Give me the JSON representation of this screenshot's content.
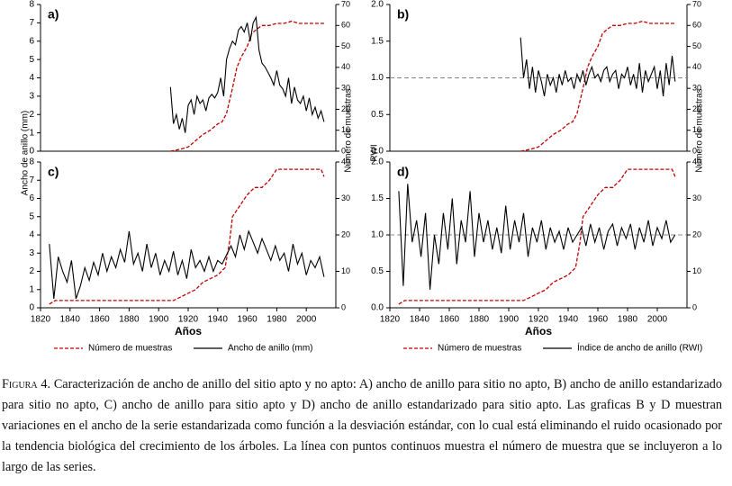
{
  "chart_data": [
    {
      "type": "line",
      "label": "a)",
      "ylabel": "Ancho de anillo (mm)",
      "y2label": "Número de muestras",
      "xlim": [
        1820,
        2020
      ],
      "ylim": [
        0,
        8
      ],
      "yticks": [
        0,
        1,
        2,
        3,
        4,
        5,
        6,
        7,
        8
      ],
      "y2lim": [
        0,
        70
      ],
      "y2ticks": [
        0,
        10,
        20,
        30,
        40,
        50,
        60,
        70
      ],
      "series": [
        {
          "color": "#c00000",
          "dash": true,
          "axis": "y2",
          "x": [
            1908,
            1915,
            1920,
            1925,
            1930,
            1935,
            1940,
            1943,
            1946,
            1950,
            1953,
            1956,
            1960,
            1963,
            1966,
            1970,
            1975,
            1980,
            1985,
            1990,
            1995,
            2000,
            2005,
            2012
          ],
          "values": [
            0,
            1,
            2,
            5,
            8,
            10,
            13,
            14,
            18,
            30,
            40,
            45,
            50,
            56,
            58,
            60,
            60,
            61,
            61,
            62,
            61,
            61,
            61,
            61
          ]
        },
        {
          "color": "#000000",
          "x": [
            1908,
            1910,
            1912,
            1914,
            1916,
            1918,
            1920,
            1922,
            1924,
            1926,
            1928,
            1930,
            1932,
            1934,
            1936,
            1938,
            1940,
            1942,
            1944,
            1946,
            1948,
            1950,
            1952,
            1954,
            1956,
            1958,
            1960,
            1962,
            1964,
            1966,
            1968,
            1970,
            1972,
            1974,
            1976,
            1978,
            1980,
            1982,
            1984,
            1986,
            1988,
            1990,
            1992,
            1994,
            1996,
            1998,
            2000,
            2002,
            2004,
            2006,
            2008,
            2010,
            2012
          ],
          "values": [
            3.5,
            1.5,
            2.0,
            1.2,
            1.8,
            1.0,
            2.5,
            2.8,
            2.0,
            3.0,
            2.6,
            2.8,
            2.2,
            2.9,
            3.1,
            2.9,
            3.2,
            4.0,
            3.0,
            5.0,
            5.6,
            6.0,
            5.8,
            6.6,
            6.8,
            6.5,
            7.0,
            6.0,
            7.0,
            7.3,
            5.5,
            4.8,
            4.6,
            4.3,
            4.0,
            3.6,
            4.4,
            3.6,
            3.4,
            3.0,
            4.0,
            2.6,
            3.5,
            2.8,
            2.6,
            3.0,
            2.2,
            2.9,
            2.0,
            2.4,
            1.8,
            2.2,
            1.6
          ]
        }
      ]
    },
    {
      "type": "line",
      "label": "b)",
      "ylabel": "RWI",
      "y2label": "Número de muestras",
      "refline": 1,
      "xlim": [
        1820,
        2020
      ],
      "ylim": [
        0,
        2
      ],
      "yticks": [
        {
          "value": 0,
          "label": "0.0"
        },
        {
          "value": 0.5,
          "label": "0.5"
        },
        {
          "value": 1,
          "label": "1.0"
        },
        {
          "value": 1.5,
          "label": "1.5"
        },
        {
          "value": 2,
          "label": "2.0"
        }
      ],
      "y2lim": [
        0,
        70
      ],
      "y2ticks": [
        0,
        10,
        20,
        30,
        40,
        50,
        60,
        70
      ],
      "series": [
        {
          "color": "#c00000",
          "dash": true,
          "axis": "y2",
          "x": [
            1908,
            1915,
            1920,
            1925,
            1930,
            1935,
            1940,
            1943,
            1946,
            1950,
            1953,
            1956,
            1960,
            1963,
            1966,
            1970,
            1975,
            1980,
            1985,
            1990,
            1995,
            2000,
            2005,
            2012
          ],
          "values": [
            0,
            1,
            2,
            5,
            8,
            10,
            13,
            14,
            18,
            30,
            40,
            45,
            50,
            56,
            58,
            60,
            60,
            61,
            61,
            62,
            61,
            61,
            61,
            61
          ]
        },
        {
          "color": "#000000",
          "x": [
            1908,
            1910,
            1912,
            1914,
            1916,
            1918,
            1920,
            1922,
            1924,
            1926,
            1928,
            1930,
            1932,
            1934,
            1936,
            1938,
            1940,
            1942,
            1944,
            1946,
            1948,
            1950,
            1952,
            1954,
            1956,
            1958,
            1960,
            1962,
            1964,
            1966,
            1968,
            1970,
            1972,
            1974,
            1976,
            1978,
            1980,
            1982,
            1984,
            1986,
            1988,
            1990,
            1992,
            1994,
            1996,
            1998,
            2000,
            2002,
            2004,
            2006,
            2008,
            2010,
            2012
          ],
          "values": [
            1.55,
            1.0,
            1.25,
            0.85,
            1.15,
            0.8,
            1.1,
            0.95,
            0.75,
            1.05,
            0.9,
            1.0,
            0.8,
            1.05,
            0.9,
            1.1,
            0.95,
            1.0,
            0.85,
            1.05,
            0.95,
            1.1,
            0.9,
            1.05,
            1.15,
            1.0,
            1.05,
            0.95,
            1.1,
            1.15,
            0.95,
            1.05,
            1.1,
            0.85,
            1.05,
            1.0,
            1.15,
            0.9,
            1.05,
            0.85,
            1.2,
            0.8,
            1.1,
            0.95,
            1.05,
            1.15,
            0.85,
            1.1,
            0.75,
            1.2,
            0.9,
            1.3,
            0.95
          ]
        }
      ]
    },
    {
      "type": "line",
      "label": "c)",
      "xlabel": "Años",
      "xlim": [
        1820,
        2020
      ],
      "xticks": [
        1820,
        1840,
        1860,
        1880,
        1900,
        1920,
        1940,
        1960,
        1980,
        2000
      ],
      "ylim": [
        0,
        8
      ],
      "yticks": [
        0,
        1,
        2,
        3,
        4,
        5,
        6,
        7,
        8
      ],
      "y2lim": [
        0,
        40
      ],
      "y2ticks": [
        0,
        10,
        20,
        30,
        40
      ],
      "series": [
        {
          "name": "Número de muestras",
          "color": "#c00000",
          "dash": true,
          "axis": "y2",
          "x": [
            1826,
            1830,
            1900,
            1910,
            1915,
            1920,
            1925,
            1930,
            1935,
            1940,
            1945,
            1948,
            1950,
            1955,
            1960,
            1965,
            1970,
            1975,
            1980,
            1990,
            2005,
            2010,
            2012
          ],
          "values": [
            1,
            2,
            2,
            2,
            3,
            4,
            5,
            7,
            8,
            9,
            11,
            18,
            25,
            28,
            31,
            33,
            33,
            35,
            38,
            38,
            38,
            38,
            36
          ]
        },
        {
          "name": "Ancho de anillo (mm)",
          "color": "#000000",
          "x": [
            1826,
            1829,
            1832,
            1835,
            1838,
            1841,
            1844,
            1847,
            1850,
            1853,
            1856,
            1859,
            1862,
            1865,
            1868,
            1871,
            1874,
            1877,
            1880,
            1883,
            1886,
            1889,
            1892,
            1895,
            1898,
            1901,
            1904,
            1907,
            1910,
            1913,
            1916,
            1919,
            1922,
            1925,
            1928,
            1931,
            1934,
            1937,
            1940,
            1943,
            1946,
            1949,
            1952,
            1955,
            1958,
            1961,
            1964,
            1967,
            1970,
            1973,
            1976,
            1979,
            1982,
            1985,
            1988,
            1991,
            1994,
            1997,
            2000,
            2003,
            2006,
            2009,
            2012
          ],
          "values": [
            3.5,
            0.5,
            2.8,
            2.0,
            1.4,
            2.6,
            0.5,
            1.2,
            2.2,
            1.5,
            2.5,
            1.8,
            3.0,
            2.0,
            2.8,
            2.2,
            3.2,
            2.5,
            4.2,
            2.4,
            3.0,
            2.0,
            3.5,
            2.2,
            3.0,
            1.8,
            2.6,
            2.0,
            3.1,
            1.8,
            2.6,
            1.6,
            3.2,
            2.2,
            2.6,
            2.0,
            2.8,
            2.0,
            2.6,
            2.4,
            2.9,
            3.4,
            2.8,
            4.0,
            3.2,
            4.2,
            3.6,
            3.0,
            3.8,
            3.2,
            2.6,
            3.4,
            2.6,
            3.0,
            2.0,
            3.5,
            2.4,
            3.0,
            1.8,
            2.6,
            2.2,
            2.8,
            1.7
          ]
        }
      ]
    },
    {
      "type": "line",
      "label": "d)",
      "xlabel": "Años",
      "refline": 1,
      "xlim": [
        1820,
        2020
      ],
      "xticks": [
        1820,
        1840,
        1860,
        1880,
        1900,
        1920,
        1940,
        1960,
        1980,
        2000
      ],
      "ylim": [
        0,
        2
      ],
      "yticks": [
        {
          "value": 0,
          "label": "0.0"
        },
        {
          "value": 0.5,
          "label": "0.5"
        },
        {
          "value": 1,
          "label": "1.0"
        },
        {
          "value": 1.5,
          "label": "1.5"
        },
        {
          "value": 2,
          "label": "2.0"
        }
      ],
      "y2lim": [
        0,
        40
      ],
      "y2ticks": [
        0,
        10,
        20,
        30,
        40
      ],
      "series": [
        {
          "name": "Número de muestras",
          "color": "#c00000",
          "dash": true,
          "axis": "y2",
          "x": [
            1826,
            1830,
            1900,
            1910,
            1915,
            1920,
            1925,
            1930,
            1935,
            1940,
            1945,
            1948,
            1950,
            1955,
            1960,
            1965,
            1970,
            1975,
            1980,
            1990,
            2005,
            2010,
            2012
          ],
          "values": [
            1,
            2,
            2,
            2,
            3,
            4,
            5,
            7,
            8,
            9,
            11,
            18,
            25,
            28,
            31,
            33,
            33,
            35,
            38,
            38,
            38,
            38,
            36
          ]
        },
        {
          "name": "Índice de ancho de anillo (RWI)",
          "color": "#000000",
          "x": [
            1826,
            1829,
            1832,
            1835,
            1838,
            1841,
            1844,
            1847,
            1850,
            1853,
            1856,
            1859,
            1862,
            1865,
            1868,
            1871,
            1874,
            1877,
            1880,
            1883,
            1886,
            1889,
            1892,
            1895,
            1898,
            1901,
            1904,
            1907,
            1910,
            1913,
            1916,
            1919,
            1922,
            1925,
            1928,
            1931,
            1934,
            1937,
            1940,
            1943,
            1946,
            1949,
            1952,
            1955,
            1958,
            1961,
            1964,
            1967,
            1970,
            1973,
            1976,
            1979,
            1982,
            1985,
            1988,
            1991,
            1994,
            1997,
            2000,
            2003,
            2006,
            2009,
            2012
          ],
          "values": [
            1.6,
            0.3,
            1.7,
            0.9,
            1.2,
            0.7,
            1.3,
            0.25,
            1.0,
            0.6,
            1.3,
            0.8,
            1.5,
            0.6,
            1.2,
            0.9,
            1.6,
            0.7,
            1.3,
            0.9,
            1.2,
            0.8,
            1.1,
            0.75,
            1.4,
            0.8,
            1.2,
            0.9,
            1.3,
            0.7,
            1.1,
            0.9,
            1.2,
            0.8,
            1.1,
            0.9,
            1.05,
            0.8,
            1.1,
            0.9,
            1.0,
            1.1,
            0.85,
            1.15,
            0.9,
            1.1,
            0.8,
            1.05,
            1.15,
            0.85,
            1.1,
            0.95,
            1.15,
            0.8,
            1.1,
            0.9,
            1.2,
            0.85,
            1.1,
            0.95,
            1.2,
            0.9,
            1.0
          ]
        }
      ]
    }
  ],
  "caption": {
    "label": "Figura 4.",
    "text": "Caracterización de ancho de anillo del sitio apto y no apto: A) ancho de anillo para sitio no apto, B) ancho de anillo estandarizado para sitio no apto, C) ancho de anillo para sitio apto y D) ancho de anillo estandarizado para sitio apto. Las graficas B y D muestran variaciones en el ancho de la serie estandarizada como función a la desviación estándar, con lo cual está eliminando el ruido ocasionado por la tendencia biológica del crecimiento de los árboles. La línea con puntos continuos muestra el número de muestra que se incluyeron a lo largo de las series."
  }
}
